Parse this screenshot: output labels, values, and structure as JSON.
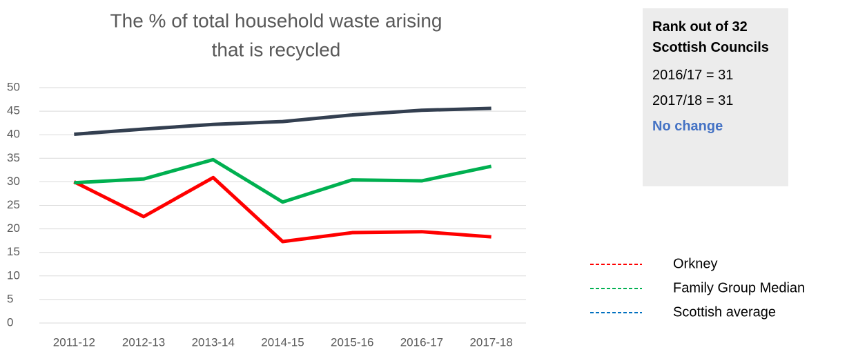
{
  "chart_data": {
    "type": "line",
    "title": "The % of total household waste arising that is recycled",
    "categories": [
      "2011-12",
      "2012-13",
      "2013-14",
      "2014-15",
      "2015-16",
      "2016-17",
      "2017-18"
    ],
    "series": [
      {
        "name": "Orkney",
        "color": "#ff0000",
        "legend_color": "#ff0000",
        "values": [
          30,
          22.6,
          30.9,
          17.3,
          19.2,
          19.4,
          18.3
        ]
      },
      {
        "name": "Family Group Median",
        "color": "#00b050",
        "legend_color": "#00b050",
        "values": [
          29.8,
          30.6,
          34.7,
          25.7,
          30.4,
          30.2,
          33.3
        ]
      },
      {
        "name": "Scottish average",
        "color": "#333f50",
        "legend_color": "#0070c0",
        "values": [
          40.1,
          41.2,
          42.2,
          42.8,
          44.2,
          45.2,
          45.6
        ]
      }
    ],
    "ylim": [
      0,
      50
    ],
    "yticks": [
      0,
      5,
      10,
      15,
      20,
      25,
      30,
      35,
      40,
      45,
      50
    ],
    "grid": true,
    "legend": "right"
  },
  "rank_box": {
    "title": "Rank out of 32 Scottish Councils",
    "lines": [
      "2016/17 = 31",
      "2017/18 = 31"
    ],
    "status": "No change"
  }
}
